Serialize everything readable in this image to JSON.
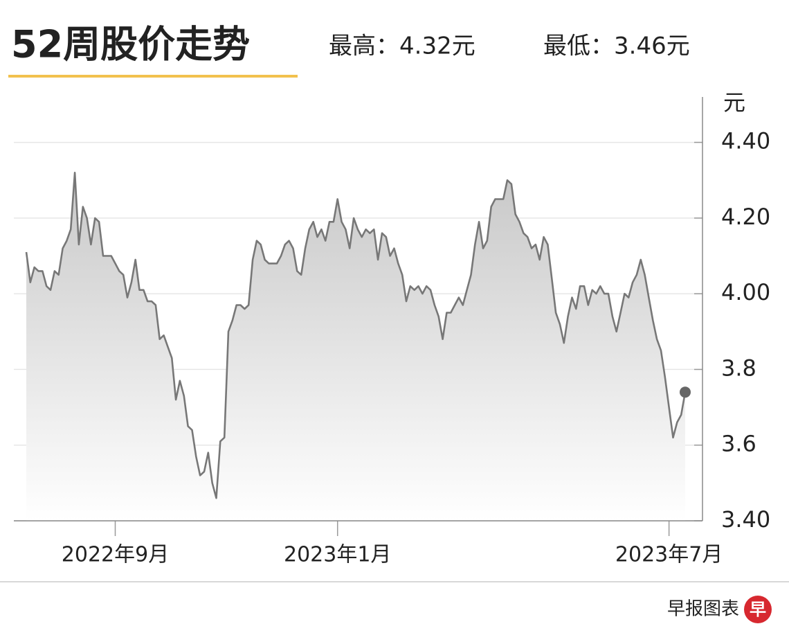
{
  "chart_data": {
    "type": "line",
    "title": "52周股价走势",
    "subtitle": [
      "最高：4.32元",
      "最低：3.46元"
    ],
    "y_axis_label": "元",
    "source": "早报图表",
    "logo": "早",
    "color": "#777777",
    "grid": true,
    "ylim": [
      3.4,
      4.52
    ],
    "yticks": [
      {
        "value": 3.4,
        "label": "3.40"
      },
      3.6,
      3.8,
      {
        "value": 4.0,
        "label": "4.00"
      },
      {
        "value": 4.2,
        "label": "4.20"
      },
      {
        "value": 4.4,
        "label": "4.40"
      }
    ],
    "xticks": [
      {
        "value": 22,
        "label": "2022年9月"
      },
      {
        "value": 77,
        "label": "2023年1月"
      },
      {
        "value": 159,
        "label": "2023年7月"
      }
    ],
    "values": [
      4.11,
      4.03,
      4.07,
      4.06,
      4.06,
      4.02,
      4.01,
      4.06,
      4.05,
      4.12,
      4.14,
      4.17,
      4.32,
      4.13,
      4.23,
      4.2,
      4.13,
      4.2,
      4.19,
      4.1,
      4.1,
      4.1,
      4.08,
      4.06,
      4.05,
      3.99,
      4.03,
      4.09,
      4.01,
      4.01,
      3.98,
      3.98,
      3.97,
      3.88,
      3.89,
      3.86,
      3.83,
      3.72,
      3.77,
      3.73,
      3.65,
      3.64,
      3.57,
      3.52,
      3.53,
      3.58,
      3.5,
      3.46,
      3.61,
      3.62,
      3.9,
      3.93,
      3.97,
      3.97,
      3.96,
      3.97,
      4.09,
      4.14,
      4.13,
      4.09,
      4.08,
      4.08,
      4.08,
      4.1,
      4.13,
      4.14,
      4.12,
      4.06,
      4.05,
      4.12,
      4.17,
      4.19,
      4.15,
      4.17,
      4.14,
      4.19,
      4.19,
      4.25,
      4.19,
      4.17,
      4.12,
      4.2,
      4.17,
      4.15,
      4.17,
      4.16,
      4.17,
      4.09,
      4.16,
      4.15,
      4.1,
      4.12,
      4.08,
      4.05,
      3.98,
      4.02,
      4.01,
      4.02,
      4.0,
      4.02,
      4.01,
      3.97,
      3.94,
      3.88,
      3.95,
      3.95,
      3.97,
      3.99,
      3.97,
      4.01,
      4.05,
      4.13,
      4.19,
      4.12,
      4.14,
      4.23,
      4.25,
      4.25,
      4.25,
      4.3,
      4.29,
      4.21,
      4.19,
      4.16,
      4.15,
      4.12,
      4.13,
      4.09,
      4.15,
      4.13,
      4.04,
      3.95,
      3.92,
      3.87,
      3.94,
      3.99,
      3.96,
      4.02,
      4.02,
      3.97,
      4.01,
      4.0,
      4.02,
      4.0,
      4.0,
      3.94,
      3.9,
      3.95,
      4.0,
      3.99,
      4.03,
      4.05,
      4.09,
      4.05,
      3.99,
      3.93,
      3.88,
      3.85,
      3.78,
      3.7,
      3.62,
      3.66,
      3.68,
      3.74
    ]
  }
}
